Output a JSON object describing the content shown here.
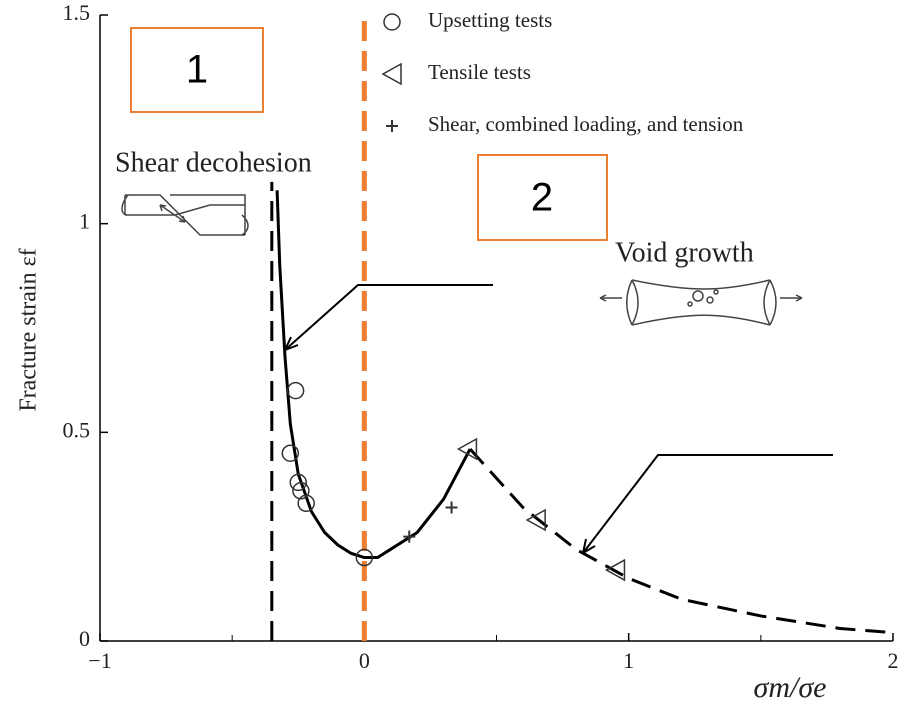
{
  "chart_data": {
    "type": "scatter",
    "xlabel": "σm/σe",
    "ylabel": "Fracture strain εf",
    "xlim": [
      -1,
      2
    ],
    "ylim": [
      0,
      1.5
    ],
    "xticks": [
      {
        "value": -1,
        "label": "−1"
      },
      0,
      1,
      2
    ],
    "xminor_ticks": [
      -0.5,
      0.5,
      1.5
    ],
    "yticks": [
      0,
      0.5,
      1,
      1.5
    ],
    "series": [
      {
        "name": "Upsetting tests",
        "marker": "circle",
        "color": "#333333",
        "x": [
          -0.26,
          -0.28,
          -0.25,
          -0.24,
          -0.22,
          0
        ],
        "values": [
          0.6,
          0.45,
          0.38,
          0.36,
          0.33,
          0.2
        ]
      },
      {
        "name": "Tensile tests",
        "marker": "triangle",
        "color": "#333333",
        "x": [
          0.39,
          0.65,
          0.95
        ],
        "values": [
          0.46,
          0.29,
          0.17
        ]
      },
      {
        "name": "Shear, combined loading, and tension",
        "marker": "plus",
        "color": "#333333",
        "x": [
          0.17,
          0.33
        ],
        "values": [
          0.25,
          0.32
        ]
      }
    ],
    "lines": [
      {
        "color": "#000000",
        "dash": false,
        "x": [
          -0.33,
          -0.32,
          -0.3,
          -0.28,
          -0.25,
          -0.2,
          -0.15,
          -0.1,
          -0.05,
          0,
          0.05,
          0.1,
          0.2,
          0.3,
          0.4
        ],
        "values": [
          1.08,
          0.9,
          0.68,
          0.52,
          0.4,
          0.31,
          0.26,
          0.23,
          0.21,
          0.2,
          0.2,
          0.22,
          0.26,
          0.34,
          0.46
        ]
      },
      {
        "color": "#000000",
        "dash": true,
        "x": [
          0.4,
          0.6,
          0.8,
          1.0,
          1.2,
          1.5,
          1.8,
          2.0
        ],
        "values": [
          0.46,
          0.32,
          0.22,
          0.15,
          0.1,
          0.06,
          0.03,
          0.02
        ]
      },
      {
        "color": "#000000",
        "dash": true,
        "x": [
          -0.35,
          -0.35
        ],
        "values": [
          0,
          1.1
        ]
      },
      {
        "color": "#ed7d31",
        "dash": true,
        "x": [
          0,
          0
        ],
        "values": [
          0,
          1.5
        ]
      }
    ],
    "annotations": [
      "Shear decohesion",
      "Void growth",
      "1",
      "2"
    ]
  }
}
